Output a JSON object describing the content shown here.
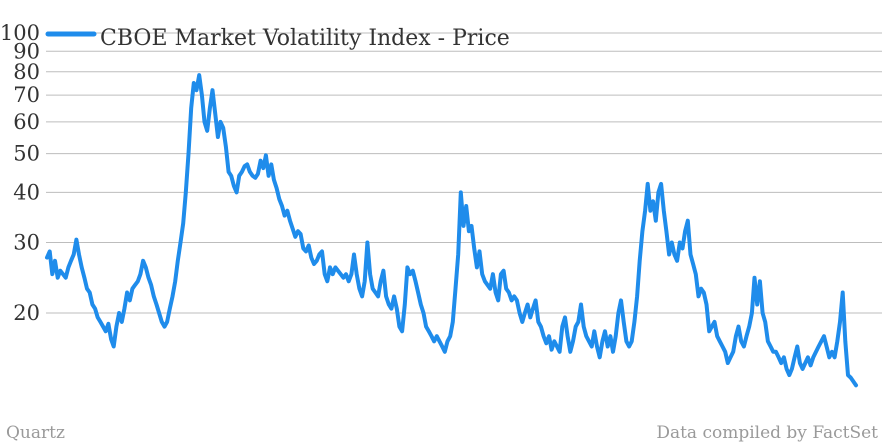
{
  "chart_data": {
    "type": "line",
    "title": "",
    "xlabel": "",
    "ylabel": "",
    "yscale": "log",
    "ylim": [
      13,
      100
    ],
    "yticks": [
      20,
      30,
      40,
      50,
      60,
      70,
      80,
      90,
      100
    ],
    "grid": "horizontal",
    "legend": "top-left",
    "series": [
      {
        "name": "CBOE Market Volatility Index - Price",
        "color": "#1f8ceb",
        "values": [
          27.5,
          28.5,
          25.0,
          27.0,
          24.5,
          25.5,
          25.0,
          24.5,
          26.0,
          27.0,
          28.0,
          30.5,
          28.0,
          26.0,
          24.5,
          23.0,
          22.5,
          21.0,
          20.5,
          19.5,
          19.0,
          18.5,
          18.0,
          18.8,
          17.2,
          16.5,
          18.5,
          20.0,
          19.0,
          20.5,
          22.5,
          21.5,
          23.0,
          23.5,
          24.0,
          25.0,
          27.0,
          26.0,
          24.5,
          23.5,
          22.0,
          21.0,
          20.0,
          19.0,
          18.5,
          19.0,
          20.5,
          22.0,
          24.0,
          27.0,
          30.0,
          33.5,
          40.0,
          50.0,
          65.0,
          75.0,
          72.0,
          78.5,
          70.0,
          60.0,
          57.0,
          65.0,
          72.0,
          63.0,
          55.0,
          60.0,
          58.0,
          52.0,
          45.0,
          44.0,
          41.5,
          40.0,
          44.0,
          45.0,
          46.5,
          47.0,
          45.0,
          44.0,
          43.5,
          44.5,
          48.0,
          46.0,
          49.5,
          44.0,
          47.0,
          43.0,
          41.0,
          38.5,
          37.0,
          35.0,
          36.0,
          34.0,
          32.5,
          31.0,
          32.0,
          31.5,
          29.0,
          28.5,
          29.5,
          27.5,
          26.5,
          27.0,
          28.0,
          28.5,
          25.0,
          24.0,
          26.0,
          25.0,
          26.0,
          25.5,
          25.0,
          24.5,
          25.0,
          24.0,
          25.0,
          28.0,
          25.0,
          23.0,
          22.0,
          24.0,
          30.0,
          25.0,
          23.0,
          22.5,
          22.0,
          24.0,
          25.5,
          22.0,
          21.0,
          20.5,
          22.0,
          20.5,
          18.5,
          18.0,
          21.0,
          26.0,
          25.0,
          25.5,
          24.0,
          22.5,
          21.0,
          20.0,
          18.5,
          18.0,
          17.5,
          17.0,
          17.5,
          17.0,
          16.5,
          16.0,
          17.0,
          17.5,
          19.0,
          23.0,
          28.0,
          40.0,
          33.0,
          37.0,
          32.0,
          33.0,
          29.0,
          26.0,
          28.5,
          25.0,
          24.0,
          23.5,
          23.0,
          25.0,
          22.5,
          21.5,
          25.0,
          25.5,
          23.0,
          22.5,
          21.5,
          22.0,
          21.5,
          20.0,
          19.0,
          20.0,
          21.0,
          19.5,
          20.5,
          21.5,
          19.0,
          18.5,
          17.5,
          16.8,
          17.5,
          16.2,
          17.0,
          16.5,
          16.0,
          18.5,
          19.5,
          17.5,
          16.0,
          17.0,
          18.5,
          19.0,
          21.0,
          18.5,
          17.5,
          17.0,
          16.5,
          18.0,
          16.5,
          15.5,
          17.0,
          18.0,
          16.5,
          17.5,
          16.0,
          17.5,
          20.0,
          21.5,
          19.0,
          17.0,
          16.5,
          17.0,
          19.0,
          22.0,
          27.0,
          32.0,
          36.0,
          42.0,
          36.0,
          38.0,
          34.0,
          40.0,
          42.0,
          36.0,
          32.0,
          28.0,
          30.0,
          28.0,
          27.0,
          30.0,
          29.0,
          32.0,
          34.0,
          28.0,
          26.5,
          25.0,
          22.0,
          23.0,
          22.5,
          21.0,
          18.0,
          18.5,
          19.0,
          17.5,
          17.0,
          16.5,
          16.0,
          15.0,
          15.5,
          16.0,
          17.5,
          18.5,
          17.0,
          16.5,
          17.5,
          18.5,
          20.0,
          24.5,
          21.0,
          24.0,
          20.0,
          19.0,
          17.0,
          16.5,
          16.0,
          16.0,
          15.5,
          15.0,
          15.5,
          14.5,
          14.0,
          14.5,
          15.5,
          16.5,
          15.0,
          14.5,
          15.0,
          15.5,
          14.8,
          15.5,
          16.0,
          16.5,
          17.0,
          17.5,
          16.5,
          15.5,
          16.0,
          15.5,
          17.0,
          19.0,
          22.5,
          17.0,
          14.0,
          13.8,
          13.5,
          13.2
        ]
      }
    ]
  },
  "legend": {
    "label": "CBOE Market Volatility Index - Price"
  },
  "footer": {
    "left": "Quartz",
    "right": "Data compiled by FactSet"
  }
}
